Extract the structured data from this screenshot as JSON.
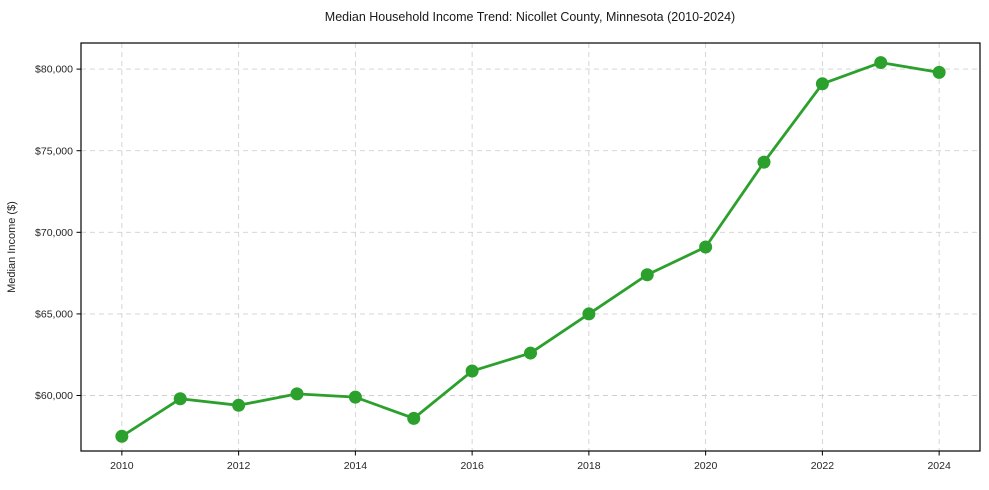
{
  "figure": {
    "title": "Median Household Income Trend: Nicollet County, Minnesota (2010-2024)",
    "ylabel": "Median Income ($)",
    "xlabel": ""
  },
  "chart_data": {
    "type": "line",
    "title": "Median Household Income Trend: Nicollet County, Minnesota (2010-2024)",
    "xlabel": "",
    "ylabel": "Median Income ($)",
    "series_name": "Median Household Income",
    "x": [
      2010,
      2011,
      2012,
      2013,
      2014,
      2015,
      2016,
      2017,
      2018,
      2019,
      2020,
      2021,
      2022,
      2023,
      2024
    ],
    "values": [
      57500,
      59800,
      59400,
      60100,
      59900,
      58600,
      61500,
      62600,
      65000,
      67400,
      69100,
      74300,
      79100,
      80400,
      79800
    ],
    "xticks": [
      2010,
      2012,
      2014,
      2016,
      2018,
      2020,
      2022,
      2024
    ],
    "xtick_labels": [
      "2010",
      "2012",
      "2014",
      "2016",
      "2018",
      "2020",
      "2022",
      "2024"
    ],
    "yticks": [
      60000,
      65000,
      70000,
      75000,
      80000
    ],
    "ytick_labels": [
      "$60,000",
      "$65,000",
      "$70,000",
      "$75,000",
      "$80,000"
    ],
    "xlim": [
      2009.3,
      2024.7
    ],
    "ylim": [
      56600,
      81600
    ],
    "grid": true,
    "grid_style": "dashed",
    "legend": false,
    "line_color": "#2ca02c",
    "marker": "circle",
    "marker_size": 6.5,
    "grid_color": "#d0d0d0",
    "spine_color": "#000000",
    "text_color": "#262626",
    "background": "#ffffff"
  }
}
